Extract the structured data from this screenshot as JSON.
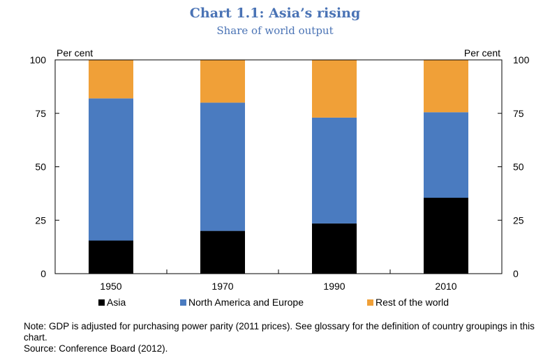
{
  "title": "Chart 1.1: Asia’s rising",
  "subtitle": "Share of world output",
  "note": "Note: GDP is adjusted for purchasing power parity (2011 prices). See glossary for the definition of country groupings in this chart.",
  "source": "Source: Conference Board (2012).",
  "colors": {
    "asia": "#000000",
    "north_america_europe": "#4A7BC0",
    "rest_of_world": "#F0A038"
  },
  "chart_data": {
    "type": "bar",
    "stacked": true,
    "title": "Chart 1.1: Asia’s rising",
    "subtitle": "Share of world output",
    "categories": [
      "1950",
      "1970",
      "1990",
      "2010"
    ],
    "series": [
      {
        "name": "Asia",
        "values": [
          15.5,
          20,
          23.5,
          35.5
        ]
      },
      {
        "name": "North America and Europe",
        "values": [
          66.5,
          60,
          49.5,
          40
        ]
      },
      {
        "name": "Rest of the world",
        "values": [
          18,
          20,
          27,
          24.5
        ]
      }
    ],
    "ylabel_left": "Per cent",
    "ylabel_right": "Per cent",
    "ylim": [
      0,
      100
    ],
    "yticks": [
      "0",
      "25",
      "50",
      "75",
      "100"
    ],
    "grid": false,
    "legend_position": "bottom"
  }
}
